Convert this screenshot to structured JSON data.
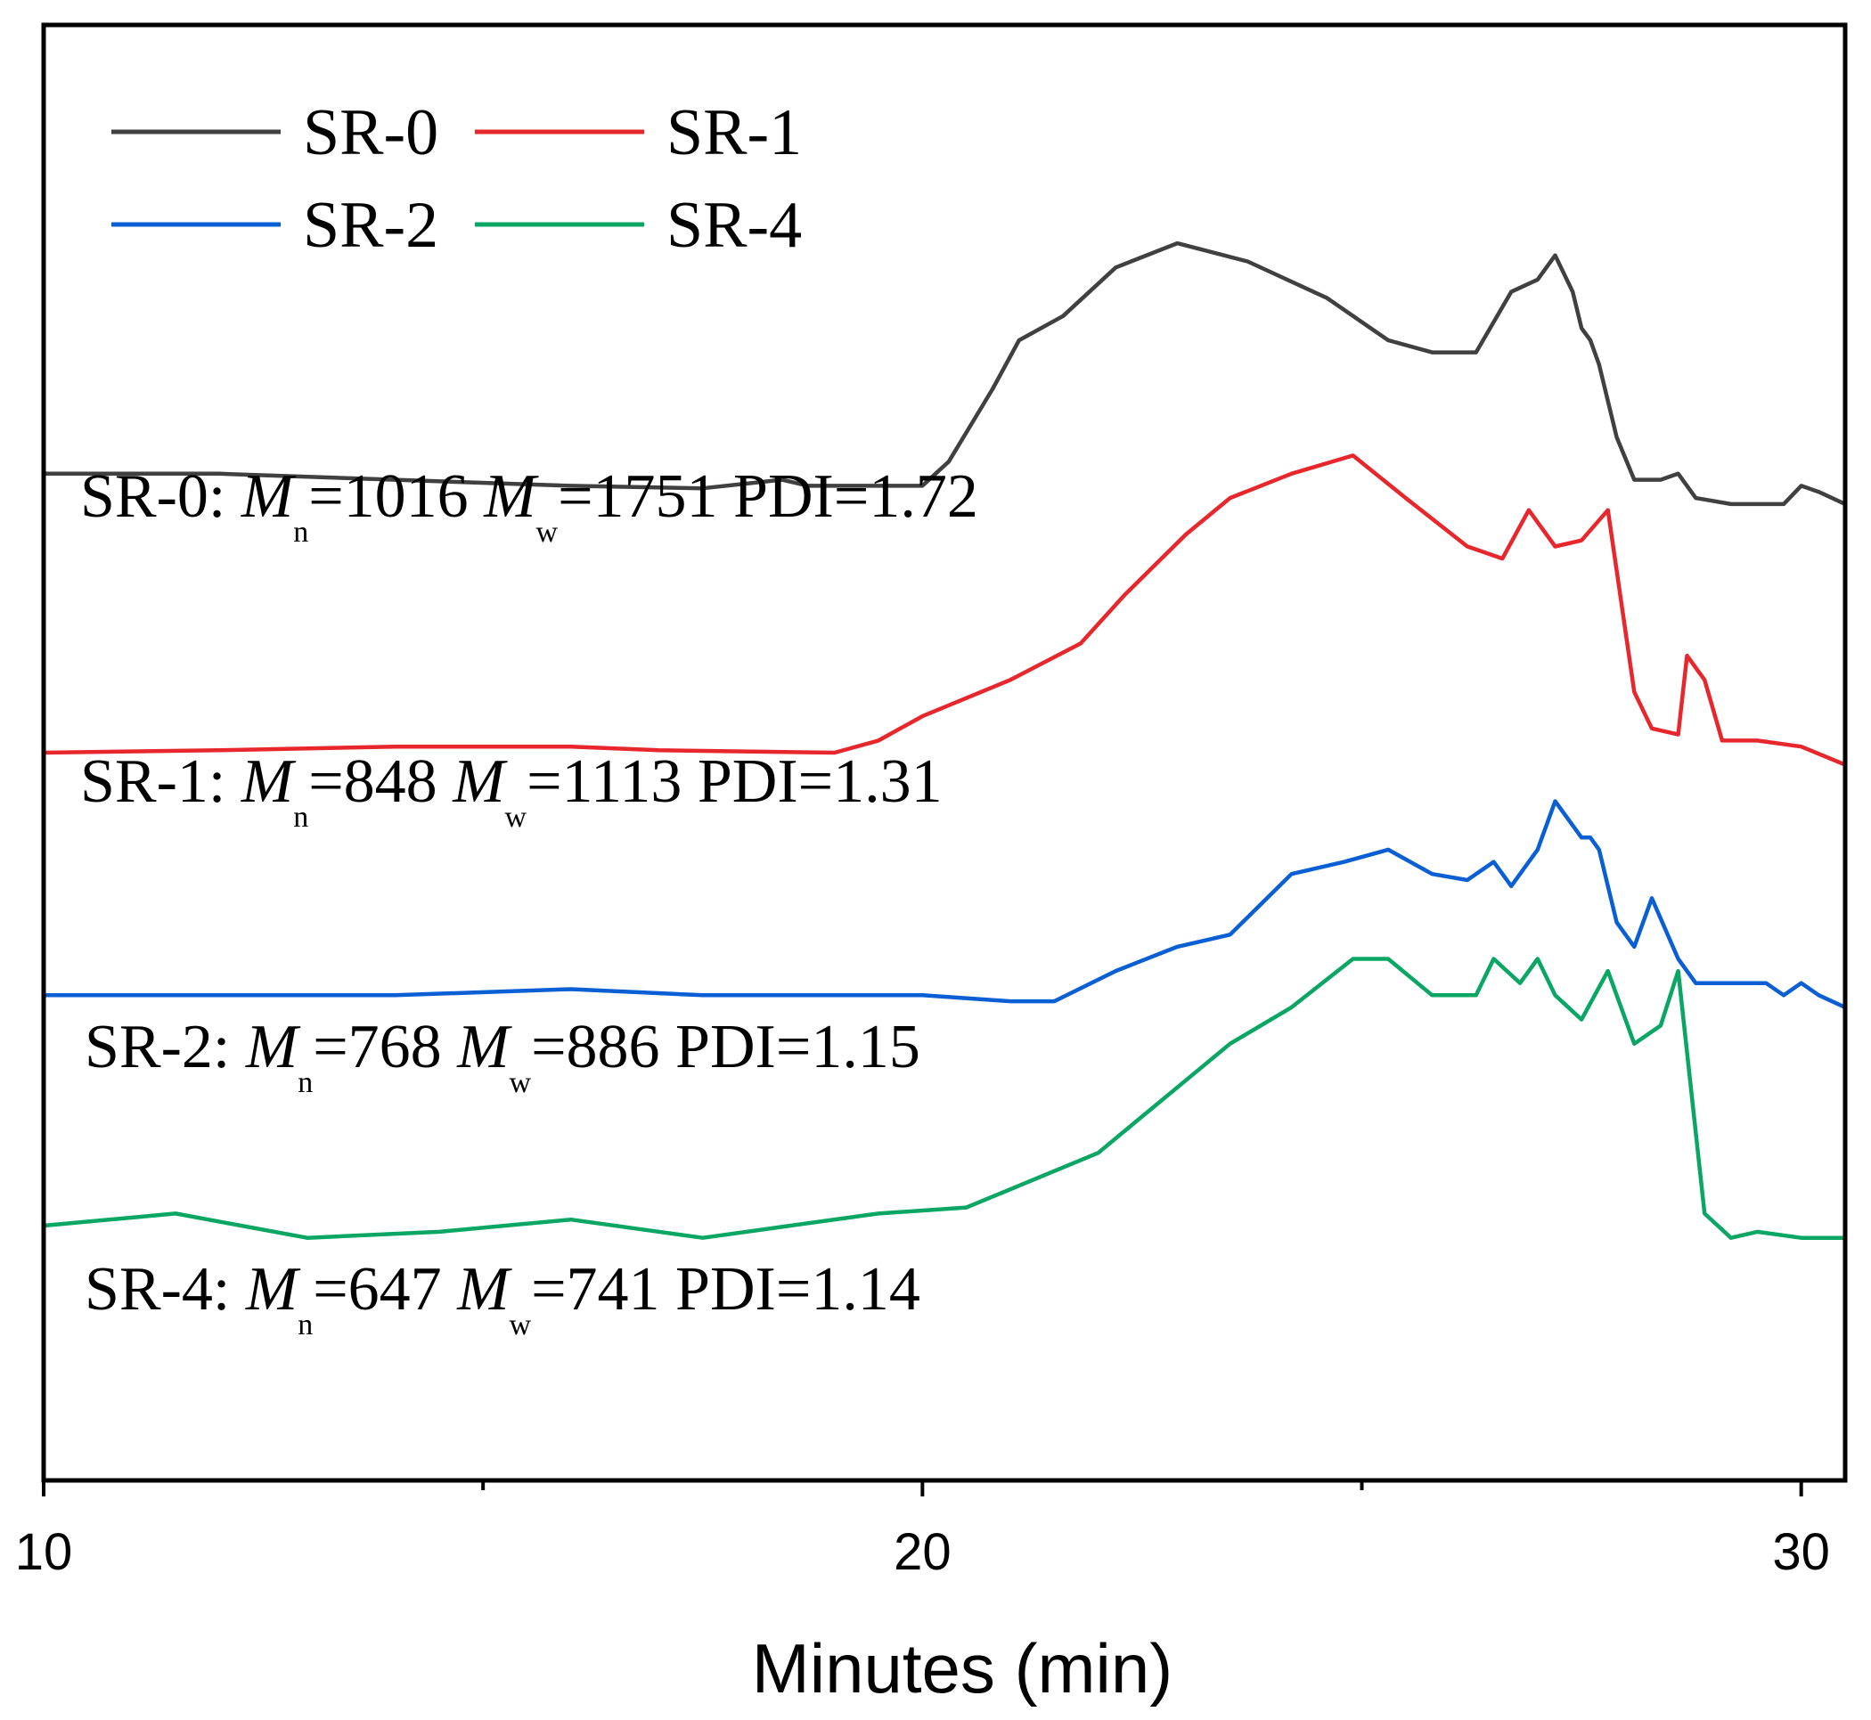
{
  "chart_data": {
    "type": "line",
    "title": "",
    "xlabel": "Minutes (min)",
    "ylabel": "",
    "xlim": [
      10,
      30.5
    ],
    "ylim": [
      0,
      12
    ],
    "x_ticks_major": [
      10,
      20,
      30
    ],
    "x_ticks_minor": [
      15,
      25
    ],
    "grid": false,
    "legend_position": "top-left",
    "legend": [
      {
        "name": "SR-0",
        "color": "#404040"
      },
      {
        "name": "SR-1",
        "color": "#e8272d"
      },
      {
        "name": "SR-2",
        "color": "#0a5fd4"
      },
      {
        "name": "SR-4",
        "color": "#0aa664"
      }
    ],
    "series": [
      {
        "name": "SR-0",
        "color": "#404040",
        "x": [
          10,
          12,
          14,
          16,
          17.5,
          18.4,
          18.7,
          19,
          20,
          20.3,
          20.8,
          21.1,
          21.6,
          22.2,
          22.9,
          23.7,
          24.6,
          25.3,
          25.8,
          26.3,
          26.7,
          27,
          27.2,
          27.4,
          27.5,
          27.6,
          27.7,
          27.9,
          28.1,
          28.4,
          28.6,
          28.8,
          29.2,
          29.8,
          30,
          30.2,
          30.5
        ],
        "y": [
          8.3,
          8.3,
          8.25,
          8.2,
          8.18,
          8.25,
          8.2,
          8.2,
          8.2,
          8.4,
          9.0,
          9.4,
          9.6,
          10.0,
          10.2,
          10.05,
          9.75,
          9.4,
          9.3,
          9.3,
          9.8,
          9.9,
          10.1,
          9.8,
          9.5,
          9.4,
          9.2,
          8.6,
          8.25,
          8.25,
          8.3,
          8.1,
          8.05,
          8.05,
          8.2,
          8.15,
          8.05
        ]
      },
      {
        "name": "SR-1",
        "color": "#e8272d",
        "x": [
          10,
          12,
          14,
          16,
          17,
          19,
          19.5,
          20,
          21,
          21.8,
          22.3,
          23,
          23.5,
          24.2,
          24.9,
          25.5,
          26.2,
          26.6,
          26.9,
          27.2,
          27.5,
          27.8,
          28.1,
          28.3,
          28.6,
          28.7,
          28.9,
          29.1,
          29.5,
          30,
          30.5
        ],
        "y": [
          6.0,
          6.02,
          6.05,
          6.05,
          6.02,
          6.0,
          6.1,
          6.3,
          6.6,
          6.9,
          7.3,
          7.8,
          8.1,
          8.3,
          8.45,
          8.1,
          7.7,
          7.6,
          8.0,
          7.7,
          7.75,
          8.0,
          6.5,
          6.2,
          6.15,
          6.8,
          6.6,
          6.1,
          6.1,
          6.05,
          5.9
        ]
      },
      {
        "name": "SR-2",
        "color": "#0a5fd4",
        "x": [
          10,
          12,
          14,
          16,
          17.5,
          19,
          20,
          21,
          21.5,
          22.2,
          22.9,
          23.5,
          24.2,
          24.8,
          25.3,
          25.8,
          26.2,
          26.5,
          26.7,
          27,
          27.2,
          27.4,
          27.5,
          27.6,
          27.7,
          27.9,
          28.1,
          28.3,
          28.6,
          28.8,
          29.1,
          29.6,
          29.8,
          30,
          30.2,
          30.5
        ],
        "y": [
          4.0,
          4.0,
          4.0,
          4.05,
          4.0,
          4.0,
          4.0,
          3.95,
          3.95,
          4.2,
          4.4,
          4.5,
          5.0,
          5.1,
          5.2,
          5.0,
          4.95,
          5.1,
          4.9,
          5.2,
          5.6,
          5.4,
          5.3,
          5.3,
          5.2,
          4.6,
          4.4,
          4.8,
          4.3,
          4.1,
          4.1,
          4.1,
          4.0,
          4.1,
          4.0,
          3.9
        ]
      },
      {
        "name": "SR-4",
        "color": "#0aa664",
        "x": [
          10,
          11.5,
          13,
          14.5,
          16,
          17.5,
          18.5,
          19.5,
          20.5,
          22,
          23,
          23.5,
          24.2,
          24.9,
          25.3,
          25.8,
          26.3,
          26.5,
          26.8,
          27,
          27.2,
          27.5,
          27.8,
          28.1,
          28.4,
          28.6,
          28.9,
          29.2,
          29.5,
          30,
          30.5
        ],
        "y": [
          2.1,
          2.2,
          2.0,
          2.05,
          2.15,
          2.0,
          2.1,
          2.2,
          2.25,
          2.7,
          3.3,
          3.6,
          3.9,
          4.3,
          4.3,
          4.0,
          4.0,
          4.3,
          4.1,
          4.3,
          4.0,
          3.8,
          4.2,
          3.6,
          3.75,
          4.2,
          2.2,
          2.0,
          2.05,
          2.0,
          2.0
        ]
      }
    ],
    "annotations": [
      {
        "sample": "SR-0:",
        "mn_label": "M",
        "mn_sub": "n",
        "mn_value": "=1016",
        "mw_label": "M",
        "mw_sub": "w",
        "mw_value": "=1751",
        "pdi": "PDI=1.72"
      },
      {
        "sample": "SR-1:",
        "mn_label": "M",
        "mn_sub": "n",
        "mn_value": "=848",
        "mw_label": "M",
        "mw_sub": "w",
        "mw_value": "=1113",
        "pdi": "PDI=1.31"
      },
      {
        "sample": "SR-2:",
        "mn_label": "M",
        "mn_sub": "n",
        "mn_value": "=768",
        "mw_label": "M",
        "mw_sub": "w",
        "mw_value": "=886",
        "pdi": "PDI=1.15"
      },
      {
        "sample": "SR-4:",
        "mn_label": "M",
        "mn_sub": "n",
        "mn_value": "=647",
        "mw_label": "M",
        "mw_sub": "w",
        "mw_value": "=741",
        "pdi": "PDI=1.14"
      }
    ]
  }
}
